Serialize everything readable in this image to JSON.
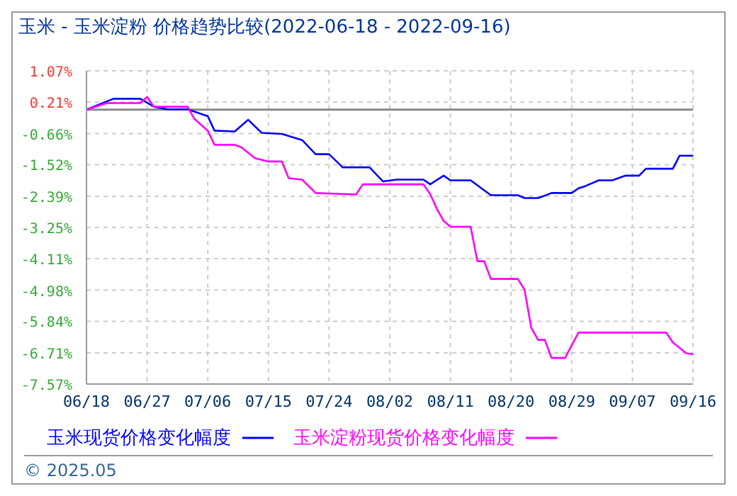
{
  "chart_data": {
    "type": "line",
    "title": "玉米 - 玉米淀粉 价格趋势比较(2022-06-18 - 2022-09-16)",
    "xlim": [
      "2022-06-18",
      "2022-09-16"
    ],
    "xticks": [
      {
        "value": "2022-06-18",
        "label": "06/18"
      },
      {
        "value": "2022-06-27",
        "label": "06/27"
      },
      {
        "value": "2022-07-06",
        "label": "07/06"
      },
      {
        "value": "2022-07-15",
        "label": "07/15"
      },
      {
        "value": "2022-07-24",
        "label": "07/24"
      },
      {
        "value": "2022-08-02",
        "label": "08/02"
      },
      {
        "value": "2022-08-11",
        "label": "08/11"
      },
      {
        "value": "2022-08-20",
        "label": "08/20"
      },
      {
        "value": "2022-08-29",
        "label": "08/29"
      },
      {
        "value": "2022-09-07",
        "label": "09/07"
      },
      {
        "value": "2022-09-16",
        "label": "09/16"
      }
    ],
    "ylim": [
      -7.57,
      1.07
    ],
    "yticks": [
      {
        "value": 1.07,
        "label": "1.07%"
      },
      {
        "value": 0.21,
        "label": "0.21%"
      },
      {
        "value": -0.66,
        "label": "-0.66%"
      },
      {
        "value": -1.52,
        "label": "-1.52%"
      },
      {
        "value": -2.39,
        "label": "-2.39%"
      },
      {
        "value": -3.25,
        "label": "-3.25%"
      },
      {
        "value": -4.11,
        "label": "-4.11%"
      },
      {
        "value": -4.98,
        "label": "-4.98%"
      },
      {
        "value": -5.84,
        "label": "-5.84%"
      },
      {
        "value": -6.71,
        "label": "-6.71%"
      },
      {
        "value": -7.57,
        "label": "-7.57%"
      }
    ],
    "grid": true,
    "legend": "bottom",
    "marker": "none",
    "line_style": "solid",
    "ref_lines": [
      {
        "axis": "y",
        "value": 0,
        "color": "#888888"
      }
    ],
    "annotations": [
      "© 2025.05"
    ],
    "series": [
      {
        "name": "玉米现货价格变化幅度",
        "color": "#0000ff",
        "x": [
          "2022-06-18",
          "2022-06-22",
          "2022-06-26",
          "2022-06-28",
          "2022-06-30",
          "2022-07-03",
          "2022-07-06",
          "2022-07-07",
          "2022-07-10",
          "2022-07-12",
          "2022-07-14",
          "2022-07-17",
          "2022-07-20",
          "2022-07-22",
          "2022-07-24",
          "2022-07-26",
          "2022-07-30",
          "2022-08-01",
          "2022-08-03",
          "2022-08-07",
          "2022-08-08",
          "2022-08-10",
          "2022-08-11",
          "2022-08-14",
          "2022-08-17",
          "2022-08-21",
          "2022-08-22",
          "2022-08-24",
          "2022-08-26",
          "2022-08-29",
          "2022-08-30",
          "2022-08-31",
          "2022-09-02",
          "2022-09-04",
          "2022-09-06",
          "2022-09-08",
          "2022-09-09",
          "2022-09-13",
          "2022-09-14",
          "2022-09-16"
        ],
        "values": [
          0,
          0.3,
          0.3,
          0.08,
          0.01,
          0.01,
          -0.18,
          -0.58,
          -0.6,
          -0.28,
          -0.64,
          -0.67,
          -0.84,
          -1.23,
          -1.23,
          -1.59,
          -1.59,
          -1.98,
          -1.93,
          -1.93,
          -2.06,
          -1.82,
          -1.95,
          -1.95,
          -2.36,
          -2.36,
          -2.44,
          -2.44,
          -2.3,
          -2.3,
          -2.17,
          -2.11,
          -1.95,
          -1.95,
          -1.82,
          -1.82,
          -1.63,
          -1.63,
          -1.27,
          -1.27
        ]
      },
      {
        "name": "玉米淀粉现货价格变化幅度",
        "color": "#ff00ff",
        "x": [
          "2022-06-18",
          "2022-06-21",
          "2022-06-26",
          "2022-06-27",
          "2022-06-28",
          "2022-07-03",
          "2022-07-04",
          "2022-07-06",
          "2022-07-07",
          "2022-07-10",
          "2022-07-11",
          "2022-07-13",
          "2022-07-15",
          "2022-07-17",
          "2022-07-18",
          "2022-07-20",
          "2022-07-22",
          "2022-07-28",
          "2022-07-29",
          "2022-08-07",
          "2022-08-08",
          "2022-08-09",
          "2022-08-10",
          "2022-08-11",
          "2022-08-14",
          "2022-08-15",
          "2022-08-16",
          "2022-08-17",
          "2022-08-21",
          "2022-08-22",
          "2022-08-23",
          "2022-08-24",
          "2022-08-25",
          "2022-08-26",
          "2022-08-28",
          "2022-08-30",
          "2022-09-12",
          "2022-09-13",
          "2022-09-15",
          "2022-09-16"
        ],
        "values": [
          0,
          0.18,
          0.18,
          0.35,
          0.08,
          0.08,
          -0.25,
          -0.58,
          -0.97,
          -0.97,
          -1.04,
          -1.34,
          -1.43,
          -1.43,
          -1.89,
          -1.93,
          -2.3,
          -2.34,
          -2.06,
          -2.06,
          -2.33,
          -2.74,
          -3.07,
          -3.23,
          -3.23,
          -4.18,
          -4.18,
          -4.67,
          -4.67,
          -4.97,
          -6.02,
          -6.35,
          -6.35,
          -6.85,
          -6.85,
          -6.15,
          -6.15,
          -6.42,
          -6.72,
          -6.75
        ]
      }
    ]
  }
}
